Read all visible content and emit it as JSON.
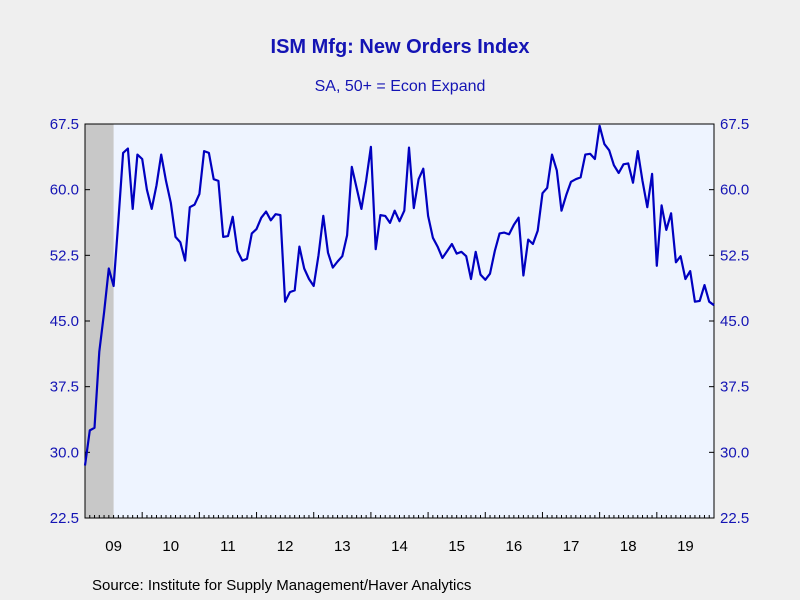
{
  "chart_data": {
    "type": "line",
    "title": "ISM Mfg: New Orders Index",
    "subtitle": "SA, 50+ = Econ Expand",
    "source": "Source:  Institute for Supply Management/Haver Analytics",
    "ylim": [
      22.5,
      67.5
    ],
    "y_ticks": [
      "67.5",
      "60.0",
      "52.5",
      "45.0",
      "37.5",
      "30.0",
      "22.5"
    ],
    "x_tick_labels": [
      "09",
      "10",
      "11",
      "12",
      "13",
      "14",
      "15",
      "16",
      "17",
      "18",
      "19"
    ],
    "x_range": [
      "2009-01",
      "2019-12"
    ],
    "recession_shading": [
      "2009-01",
      "2009-06"
    ],
    "colors": {
      "line": "#0000c0",
      "axis_text": "#1414b4",
      "plot_bg": "#eef4ff",
      "recession": "#c8c8c8",
      "page_bg": "#efefef"
    },
    "series": [
      {
        "values": [
          [
            2009,
            1,
            28.5
          ],
          [
            2009,
            2,
            32.5
          ],
          [
            2009,
            3,
            32.8
          ],
          [
            2009,
            4,
            41.5
          ],
          [
            2009,
            5,
            46.0
          ],
          [
            2009,
            6,
            51.0
          ],
          [
            2009,
            7,
            49.0
          ],
          [
            2009,
            8,
            56.5
          ],
          [
            2009,
            9,
            64.2
          ],
          [
            2009,
            10,
            64.7
          ],
          [
            2009,
            11,
            57.8
          ],
          [
            2009,
            12,
            64.0
          ],
          [
            2010,
            1,
            63.5
          ],
          [
            2010,
            2,
            60.0
          ],
          [
            2010,
            3,
            57.8
          ],
          [
            2010,
            4,
            60.5
          ],
          [
            2010,
            5,
            64.0
          ],
          [
            2010,
            6,
            61.0
          ],
          [
            2010,
            7,
            58.5
          ],
          [
            2010,
            8,
            54.6
          ],
          [
            2010,
            9,
            54.0
          ],
          [
            2010,
            10,
            51.9
          ],
          [
            2010,
            11,
            58.0
          ],
          [
            2010,
            12,
            58.3
          ],
          [
            2011,
            1,
            59.5
          ],
          [
            2011,
            2,
            64.4
          ],
          [
            2011,
            3,
            64.2
          ],
          [
            2011,
            4,
            61.2
          ],
          [
            2011,
            5,
            61.0
          ],
          [
            2011,
            6,
            54.6
          ],
          [
            2011,
            7,
            54.7
          ],
          [
            2011,
            8,
            56.9
          ],
          [
            2011,
            9,
            53.0
          ],
          [
            2011,
            10,
            51.9
          ],
          [
            2011,
            11,
            52.1
          ],
          [
            2011,
            12,
            55.0
          ],
          [
            2012,
            1,
            55.5
          ],
          [
            2012,
            2,
            56.8
          ],
          [
            2012,
            3,
            57.5
          ],
          [
            2012,
            4,
            56.5
          ],
          [
            2012,
            5,
            57.2
          ],
          [
            2012,
            6,
            57.1
          ],
          [
            2012,
            7,
            47.2
          ],
          [
            2012,
            8,
            48.3
          ],
          [
            2012,
            9,
            48.5
          ],
          [
            2012,
            10,
            53.5
          ],
          [
            2012,
            11,
            51.0
          ],
          [
            2012,
            12,
            49.8
          ],
          [
            2013,
            1,
            49.0
          ],
          [
            2013,
            2,
            52.5
          ],
          [
            2013,
            3,
            57.0
          ],
          [
            2013,
            4,
            52.8
          ],
          [
            2013,
            5,
            51.1
          ],
          [
            2013,
            6,
            51.8
          ],
          [
            2013,
            7,
            52.4
          ],
          [
            2013,
            8,
            54.8
          ],
          [
            2013,
            9,
            62.6
          ],
          [
            2013,
            10,
            60.2
          ],
          [
            2013,
            11,
            57.8
          ],
          [
            2013,
            12,
            61.0
          ],
          [
            2014,
            1,
            64.9
          ],
          [
            2014,
            2,
            53.2
          ],
          [
            2014,
            3,
            57.1
          ],
          [
            2014,
            4,
            57.0
          ],
          [
            2014,
            5,
            56.2
          ],
          [
            2014,
            6,
            57.6
          ],
          [
            2014,
            7,
            56.4
          ],
          [
            2014,
            8,
            57.6
          ],
          [
            2014,
            9,
            64.8
          ],
          [
            2014,
            10,
            57.9
          ],
          [
            2014,
            11,
            61.2
          ],
          [
            2014,
            12,
            62.4
          ],
          [
            2015,
            1,
            57.0
          ],
          [
            2015,
            2,
            54.5
          ],
          [
            2015,
            3,
            53.5
          ],
          [
            2015,
            4,
            52.2
          ],
          [
            2015,
            5,
            53.0
          ],
          [
            2015,
            6,
            53.8
          ],
          [
            2015,
            7,
            52.7
          ],
          [
            2015,
            8,
            52.9
          ],
          [
            2015,
            9,
            52.4
          ],
          [
            2015,
            10,
            49.8
          ],
          [
            2015,
            11,
            52.9
          ],
          [
            2015,
            12,
            50.3
          ],
          [
            2016,
            1,
            49.7
          ],
          [
            2016,
            2,
            50.4
          ],
          [
            2016,
            3,
            53.0
          ],
          [
            2016,
            4,
            55.0
          ],
          [
            2016,
            5,
            55.1
          ],
          [
            2016,
            6,
            54.9
          ],
          [
            2016,
            7,
            56.0
          ],
          [
            2016,
            8,
            56.8
          ],
          [
            2016,
            9,
            50.2
          ],
          [
            2016,
            10,
            54.3
          ],
          [
            2016,
            11,
            53.8
          ],
          [
            2016,
            12,
            55.3
          ],
          [
            2017,
            1,
            59.6
          ],
          [
            2017,
            2,
            60.2
          ],
          [
            2017,
            3,
            64.0
          ],
          [
            2017,
            4,
            62.2
          ],
          [
            2017,
            5,
            57.6
          ],
          [
            2017,
            6,
            59.4
          ],
          [
            2017,
            7,
            60.9
          ],
          [
            2017,
            8,
            61.2
          ],
          [
            2017,
            9,
            61.4
          ],
          [
            2017,
            10,
            64.0
          ],
          [
            2017,
            11,
            64.1
          ],
          [
            2017,
            12,
            63.5
          ],
          [
            2018,
            1,
            67.3
          ],
          [
            2018,
            2,
            65.2
          ],
          [
            2018,
            3,
            64.5
          ],
          [
            2018,
            4,
            62.8
          ],
          [
            2018,
            5,
            61.9
          ],
          [
            2018,
            6,
            62.9
          ],
          [
            2018,
            7,
            63.0
          ],
          [
            2018,
            8,
            60.8
          ],
          [
            2018,
            9,
            64.4
          ],
          [
            2018,
            10,
            61.0
          ],
          [
            2018,
            11,
            58.0
          ],
          [
            2018,
            12,
            61.8
          ],
          [
            2019,
            1,
            51.3
          ],
          [
            2019,
            2,
            58.2
          ],
          [
            2019,
            3,
            55.4
          ],
          [
            2019,
            4,
            57.3
          ],
          [
            2019,
            5,
            51.7
          ],
          [
            2019,
            6,
            52.4
          ],
          [
            2019,
            7,
            49.8
          ],
          [
            2019,
            8,
            50.7
          ],
          [
            2019,
            9,
            47.2
          ],
          [
            2019,
            10,
            47.3
          ],
          [
            2019,
            11,
            49.1
          ],
          [
            2019,
            12,
            47.2
          ],
          [
            2020,
            1,
            46.8
          ]
        ]
      }
    ]
  }
}
